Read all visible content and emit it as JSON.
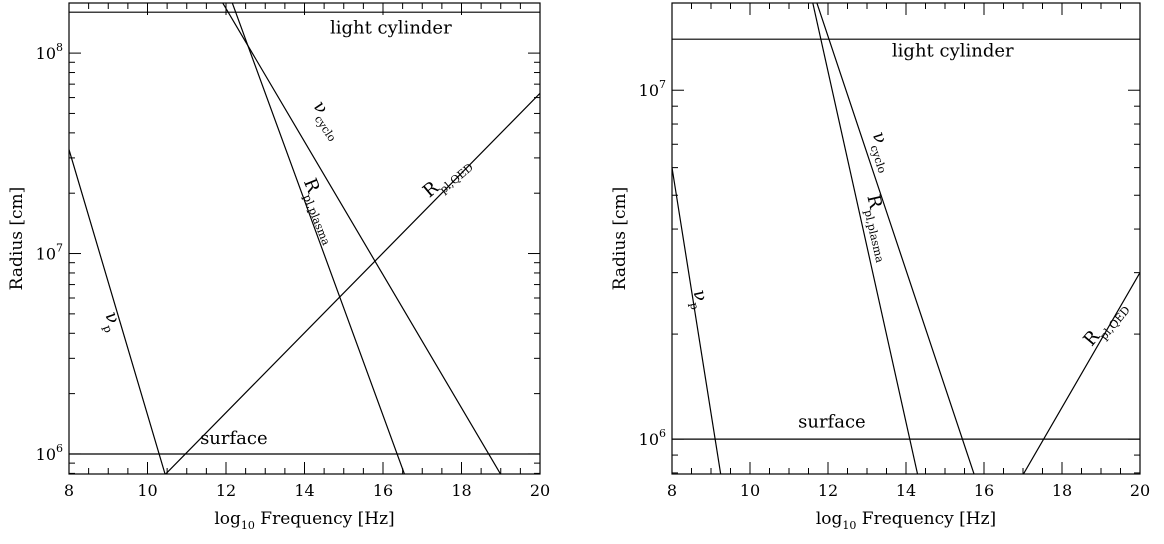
{
  "chart_data": [
    {
      "type": "line",
      "title": "",
      "xlabel": "log₁₀ Frequency [Hz]",
      "xlabel_parts": {
        "pre": "log",
        "sub": "10",
        "post": " Frequency [Hz]"
      },
      "ylabel": "Radius [cm]",
      "xlim": [
        8,
        20
      ],
      "ylim_log10": [
        5.9,
        8.25
      ],
      "y_scale": "log",
      "x_ticks": [
        8,
        10,
        12,
        14,
        16,
        18,
        20
      ],
      "x_tick_labels": [
        "8",
        "10",
        "12",
        "14",
        "16",
        "18",
        "20"
      ],
      "y_major_ticks_log10": [
        6,
        7,
        8
      ],
      "y_tick_labels": [
        {
          "base": "10",
          "exp": "6"
        },
        {
          "base": "10",
          "exp": "7"
        },
        {
          "base": "10",
          "exp": "8"
        }
      ],
      "grid": false,
      "series": [
        {
          "key": "light",
          "points": [
            [
              8,
              160000000.0
            ],
            [
              20,
              160000000.0
            ]
          ]
        },
        {
          "key": "surface",
          "points": [
            [
              8,
              1000000.0
            ],
            [
              20,
              1000000.0
            ]
          ]
        },
        {
          "key": "nu_p",
          "points": [
            [
              8,
              33000000.0
            ],
            [
              10.45,
              790000.0
            ]
          ]
        },
        {
          "key": "nu_cyclo",
          "points": [
            [
              11.9,
              180000000.0
            ],
            [
              19.0,
              790000.0
            ]
          ]
        },
        {
          "key": "r_plasma",
          "points": [
            [
              12.15,
              180000000.0
            ],
            [
              16.55,
              790000.0
            ]
          ]
        },
        {
          "key": "r_qed",
          "points": [
            [
              10.45,
              790000.0
            ],
            [
              20.0,
              63000000.0
            ]
          ]
        }
      ],
      "annotations": [
        {
          "key": "light",
          "main": "light cylinder",
          "sub": "",
          "x": 16.2,
          "y": 125000000.0,
          "rotate": 0
        },
        {
          "key": "surface",
          "main": "surface",
          "sub": "",
          "x": 12.2,
          "y": 1120000.0,
          "rotate": 0
        },
        {
          "key": "nu_p",
          "main": "ν",
          "sub": "p",
          "x": 9.0,
          "y": 4500000.0,
          "rotate": 70
        },
        {
          "key": "nu_cyclo",
          "main": "ν",
          "sub": "cyclo",
          "x": 14.5,
          "y": 45000000.0,
          "rotate": 56
        },
        {
          "key": "r_plasma",
          "main": "R",
          "sub": "pl,plasma",
          "x": 14.3,
          "y": 16000000.0,
          "rotate": 68
        },
        {
          "key": "r_qed",
          "main": "R",
          "sub": "pl,QED",
          "x": 17.7,
          "y": 23000000.0,
          "rotate": -40
        }
      ]
    },
    {
      "type": "line",
      "title": "",
      "xlabel": "log₁₀ Frequency [Hz]",
      "xlabel_parts": {
        "pre": "log",
        "sub": "10",
        "post": " Frequency [Hz]"
      },
      "ylabel": "Radius [cm]",
      "xlim": [
        8,
        20
      ],
      "ylim_log10": [
        5.9,
        7.25
      ],
      "y_scale": "log",
      "x_ticks": [
        8,
        10,
        12,
        14,
        16,
        18,
        20
      ],
      "x_tick_labels": [
        "8",
        "10",
        "12",
        "14",
        "16",
        "18",
        "20"
      ],
      "y_major_ticks_log10": [
        6,
        7
      ],
      "y_tick_labels": [
        {
          "base": "10",
          "exp": "6"
        },
        {
          "base": "10",
          "exp": "7"
        }
      ],
      "grid": false,
      "series": [
        {
          "key": "light",
          "points": [
            [
              8,
              14000000.0
            ],
            [
              20,
              14000000.0
            ]
          ]
        },
        {
          "key": "surface",
          "points": [
            [
              8,
              1000000.0
            ],
            [
              20,
              1000000.0
            ]
          ]
        },
        {
          "key": "nu_p",
          "points": [
            [
              8,
              6000000.0
            ],
            [
              9.25,
              790000.0
            ]
          ]
        },
        {
          "key": "nu_cyclo",
          "points": [
            [
              11.7,
              18000000.0
            ],
            [
              15.75,
              790000.0
            ]
          ]
        },
        {
          "key": "r_plasma",
          "points": [
            [
              11.6,
              18000000.0
            ],
            [
              14.3,
              790000.0
            ]
          ]
        },
        {
          "key": "r_qed",
          "points": [
            [
              17.0,
              790000.0
            ],
            [
              20.0,
              3000000.0
            ]
          ]
        }
      ],
      "annotations": [
        {
          "key": "light",
          "main": "light cylinder",
          "sub": "",
          "x": 15.2,
          "y": 12500000.0,
          "rotate": 0
        },
        {
          "key": "surface",
          "main": "surface",
          "sub": "",
          "x": 12.1,
          "y": 1080000.0,
          "rotate": 0
        },
        {
          "key": "nu_p",
          "main": "ν",
          "sub": "p",
          "x": 8.6,
          "y": 2500000.0,
          "rotate": 78
        },
        {
          "key": "nu_cyclo",
          "main": "ν",
          "sub": "cyclo",
          "x": 13.3,
          "y": 6600000.0,
          "rotate": 72
        },
        {
          "key": "r_plasma",
          "main": "R",
          "sub": "pl,plasma",
          "x": 13.2,
          "y": 4000000.0,
          "rotate": 77
        },
        {
          "key": "r_qed",
          "main": "R",
          "sub": "pl,QED",
          "x": 19.2,
          "y": 2100000.0,
          "rotate": -50
        }
      ]
    }
  ]
}
